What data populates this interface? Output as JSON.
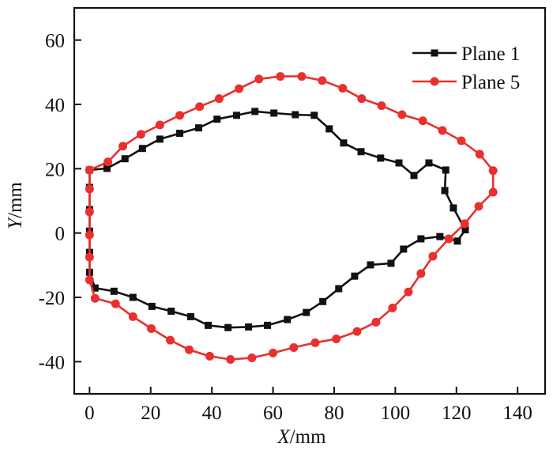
{
  "chart_data": {
    "type": "line",
    "title": "",
    "xlabel": "X/mm",
    "xlabel_var": "X",
    "xlabel_unit": "/mm",
    "ylabel": "Y/mm",
    "ylabel_var": "Y",
    "ylabel_unit": "/mm",
    "xlim": [
      -5,
      149
    ],
    "ylim": [
      -50,
      70
    ],
    "xticks": [
      0,
      20,
      40,
      60,
      80,
      100,
      120,
      140
    ],
    "yticks": [
      -40,
      -20,
      0,
      20,
      40,
      60
    ],
    "grid": false,
    "legend_position": "top-right",
    "series": [
      {
        "name": "Plane 1",
        "color": "#111111",
        "marker": "square",
        "points": [
          [
            0,
            19.6
          ],
          [
            5.7,
            20.1
          ],
          [
            11.6,
            23.1
          ],
          [
            17.3,
            26.3
          ],
          [
            23.0,
            29.2
          ],
          [
            29.5,
            31.0
          ],
          [
            35.7,
            32.7
          ],
          [
            41.7,
            35.4
          ],
          [
            48.1,
            36.6
          ],
          [
            54.1,
            37.8
          ],
          [
            60.3,
            37.3
          ],
          [
            67.3,
            36.8
          ],
          [
            73.5,
            36.6
          ],
          [
            78.4,
            32.4
          ],
          [
            83.1,
            28.0
          ],
          [
            88.8,
            25.3
          ],
          [
            95.2,
            23.3
          ],
          [
            101.2,
            21.8
          ],
          [
            106.1,
            17.9
          ],
          [
            111.0,
            21.8
          ],
          [
            116.5,
            19.6
          ],
          [
            116.2,
            13.2
          ],
          [
            119.0,
            7.8
          ],
          [
            122.9,
            1.0
          ],
          [
            120.3,
            -2.5
          ],
          [
            114.6,
            -1.1
          ],
          [
            108.4,
            -1.8
          ],
          [
            102.7,
            -5.0
          ],
          [
            98.6,
            -9.4
          ],
          [
            91.9,
            -9.9
          ],
          [
            86.7,
            -13.4
          ],
          [
            81.5,
            -17.3
          ],
          [
            76.3,
            -21.3
          ],
          [
            70.9,
            -24.7
          ],
          [
            64.7,
            -26.9
          ],
          [
            58.2,
            -28.7
          ],
          [
            52.0,
            -29.2
          ],
          [
            45.3,
            -29.4
          ],
          [
            38.8,
            -28.7
          ],
          [
            33.1,
            -26.0
          ],
          [
            26.7,
            -24.3
          ],
          [
            20.4,
            -22.8
          ],
          [
            14.2,
            -20.0
          ],
          [
            8.0,
            -18.1
          ],
          [
            1.8,
            -17.1
          ],
          [
            0,
            -12.2
          ],
          [
            0,
            -6.0
          ],
          [
            0,
            0.6
          ],
          [
            0,
            7.3
          ],
          [
            0,
            14.2
          ],
          [
            0,
            19.6
          ]
        ]
      },
      {
        "name": "Plane 5",
        "color": "#e8302f",
        "marker": "circle",
        "points": [
          [
            0,
            19.6
          ],
          [
            6.0,
            22.1
          ],
          [
            10.9,
            27.0
          ],
          [
            16.8,
            30.7
          ],
          [
            23.0,
            33.6
          ],
          [
            29.5,
            36.6
          ],
          [
            36.0,
            39.3
          ],
          [
            42.4,
            41.8
          ],
          [
            48.9,
            44.9
          ],
          [
            55.4,
            47.9
          ],
          [
            62.4,
            48.7
          ],
          [
            69.4,
            48.7
          ],
          [
            76.1,
            47.4
          ],
          [
            82.8,
            45.0
          ],
          [
            89.0,
            41.8
          ],
          [
            95.5,
            39.6
          ],
          [
            102.2,
            36.8
          ],
          [
            109.0,
            34.9
          ],
          [
            115.4,
            31.9
          ],
          [
            121.6,
            28.7
          ],
          [
            127.6,
            24.5
          ],
          [
            132.0,
            19.4
          ],
          [
            132.0,
            12.7
          ],
          [
            127.3,
            8.3
          ],
          [
            122.7,
            2.9
          ],
          [
            117.5,
            -1.8
          ],
          [
            112.3,
            -7.2
          ],
          [
            108.4,
            -12.6
          ],
          [
            104.3,
            -18.3
          ],
          [
            99.1,
            -23.3
          ],
          [
            93.7,
            -27.7
          ],
          [
            87.5,
            -30.6
          ],
          [
            80.7,
            -32.9
          ],
          [
            73.8,
            -34.1
          ],
          [
            66.8,
            -35.6
          ],
          [
            60.0,
            -37.3
          ],
          [
            53.1,
            -38.8
          ],
          [
            46.1,
            -39.3
          ],
          [
            39.3,
            -38.3
          ],
          [
            32.6,
            -36.3
          ],
          [
            26.4,
            -33.3
          ],
          [
            20.2,
            -29.7
          ],
          [
            14.2,
            -26.0
          ],
          [
            8.5,
            -22.0
          ],
          [
            1.8,
            -20.3
          ],
          [
            0,
            -14.6
          ],
          [
            0,
            -7.5
          ],
          [
            0,
            -0.6
          ],
          [
            0,
            6.6
          ],
          [
            0,
            13.7
          ],
          [
            0,
            19.6
          ]
        ]
      }
    ]
  }
}
